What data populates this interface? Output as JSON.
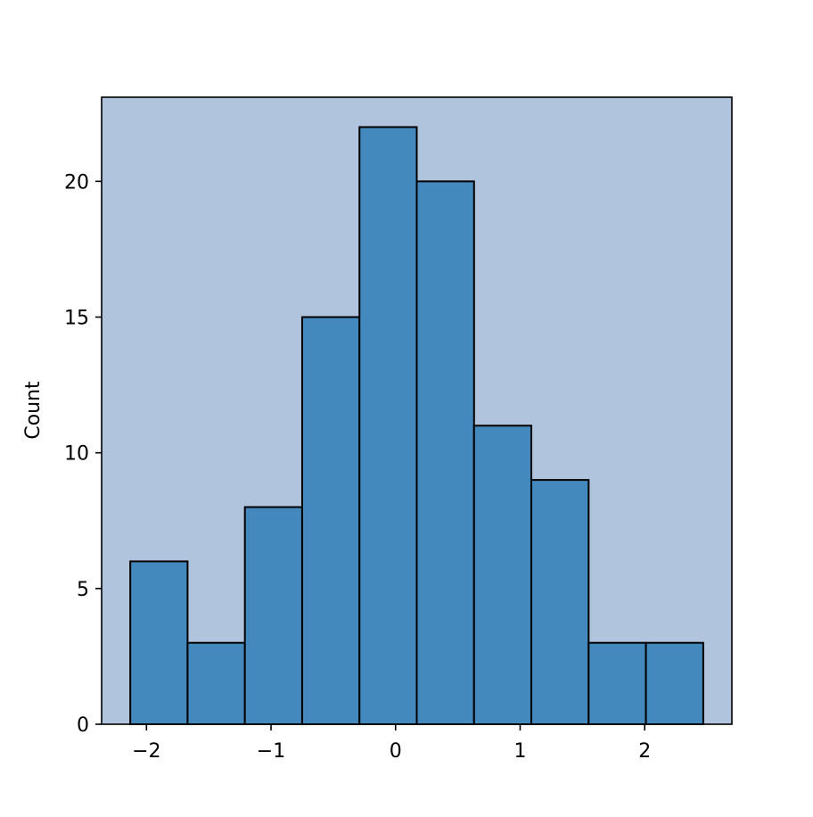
{
  "chart_data": {
    "type": "bar",
    "subtype": "histogram",
    "bins": [
      {
        "x0": -2.13,
        "x1": -1.67,
        "count": 6
      },
      {
        "x0": -1.67,
        "x1": -1.21,
        "count": 3
      },
      {
        "x0": -1.21,
        "x1": -0.75,
        "count": 8
      },
      {
        "x0": -0.75,
        "x1": -0.29,
        "count": 15
      },
      {
        "x0": -0.29,
        "x1": 0.17,
        "count": 22
      },
      {
        "x0": 0.17,
        "x1": 0.63,
        "count": 20
      },
      {
        "x0": 0.63,
        "x1": 1.09,
        "count": 11
      },
      {
        "x0": 1.09,
        "x1": 1.55,
        "count": 9
      },
      {
        "x0": 1.55,
        "x1": 2.01,
        "count": 3
      },
      {
        "x0": 2.01,
        "x1": 2.47,
        "count": 3
      }
    ],
    "title": "",
    "xlabel": "",
    "ylabel": "Count",
    "xlim": [
      -2.36,
      2.7
    ],
    "ylim": [
      0,
      23.1
    ],
    "xticks": [
      -2,
      -1,
      0,
      1,
      2
    ],
    "xtick_labels": [
      "−2",
      "−1",
      "0",
      "1",
      "2"
    ],
    "yticks": [
      0,
      5,
      10,
      15,
      20
    ],
    "ytick_labels": [
      "0",
      "5",
      "10",
      "15",
      "20"
    ],
    "grid": false,
    "colors": {
      "plot_background": "#b0c4de",
      "bar_fill": "#4389be",
      "bar_edge": "#000000",
      "axes": "#000000"
    }
  }
}
